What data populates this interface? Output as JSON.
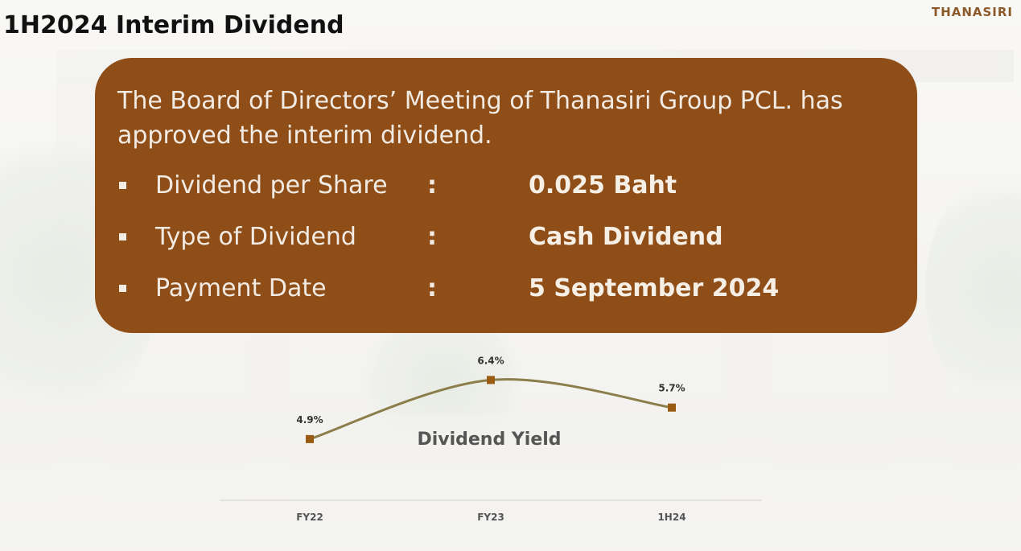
{
  "header": {
    "title": "1H2024 Interim Dividend",
    "logo_text": "THANASIRI"
  },
  "card": {
    "intro": "The Board of Directors’ Meeting of Thanasiri Group PCL. has approved the interim dividend.",
    "rows": [
      {
        "label": "Dividend per Share",
        "colon": ":",
        "value": "0.025 Baht"
      },
      {
        "label": "Type of Dividend",
        "colon": ":",
        "value": "Cash Dividend"
      },
      {
        "label": "Payment Date",
        "colon": ":",
        "value": "5 September 2024"
      }
    ]
  },
  "colors": {
    "card": "#8f4d17",
    "line": "#8b7e4a",
    "marker": "#9a5b12",
    "logo": "#8c5a2a"
  },
  "chart_data": {
    "type": "line",
    "title": "Dividend Yield",
    "categories": [
      "FY22",
      "FY23",
      "1H24"
    ],
    "values": [
      4.9,
      6.4,
      5.7
    ],
    "data_labels": [
      "4.9%",
      "6.4%",
      "5.7%"
    ],
    "xlabel": "",
    "ylabel": "",
    "ylim": [
      0,
      8
    ],
    "grid": false,
    "legend": "none"
  }
}
